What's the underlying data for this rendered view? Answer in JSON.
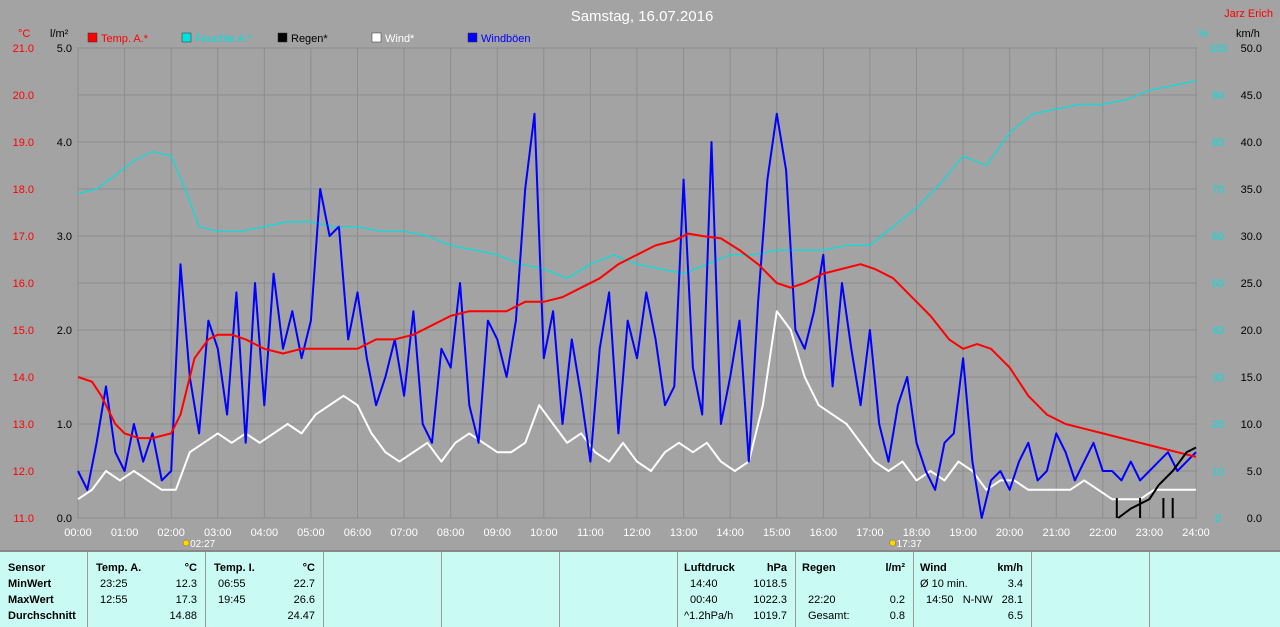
{
  "title": "Samstag, 16.07.2016",
  "author": "Jarz Erich",
  "colors": {
    "background": "#a3a3a3",
    "temp": "#ff0000",
    "pressure": "#00e0e0",
    "rain": "#000000",
    "wind": "#ffffff",
    "gust": "#0000ff",
    "stats_bg": "#c9fbf4"
  },
  "axis_units": {
    "temp": "°C",
    "rain": "l/m²",
    "pressure_right": "%",
    "wind_right": "km/h"
  },
  "sun": {
    "sunrise": "02:27",
    "sunset": "17:37"
  },
  "chart_data": {
    "type": "line",
    "title": "Samstag, 16.07.2016",
    "x_ticks": [
      "00:00",
      "01:00",
      "02:00",
      "03:00",
      "04:00",
      "05:00",
      "06:00",
      "07:00",
      "08:00",
      "09:00",
      "10:00",
      "11:00",
      "12:00",
      "13:00",
      "14:00",
      "15:00",
      "16:00",
      "17:00",
      "18:00",
      "19:00",
      "20:00",
      "21:00",
      "22:00",
      "23:00",
      "24:00"
    ],
    "axes": {
      "temp": {
        "label": "°C",
        "ticks": [
          "11.0",
          "12.0",
          "13.0",
          "14.0",
          "15.0",
          "16.0",
          "17.0",
          "18.0",
          "19.0",
          "20.0",
          "21.0"
        ],
        "range": [
          11,
          21
        ]
      },
      "rain": {
        "label": "l/m²",
        "ticks": [
          "0.0",
          "1.0",
          "2.0",
          "3.0",
          "4.0",
          "5.0"
        ],
        "range": [
          0,
          5
        ]
      },
      "right1": {
        "label": "%",
        "ticks": [
          "0",
          "10",
          "20",
          "30",
          "40",
          "50",
          "60",
          "70",
          "80",
          "90",
          "100"
        ],
        "range": [
          0,
          100
        ]
      },
      "wind": {
        "label": "km/h",
        "ticks": [
          "0.0",
          "5.0",
          "10.0",
          "15.0",
          "20.0",
          "25.0",
          "30.0",
          "35.0",
          "40.0",
          "45.0",
          "50.0"
        ],
        "range": [
          0,
          50
        ]
      }
    },
    "legend": [
      {
        "name": "Temp. A.*",
        "color": "#ff0000"
      },
      {
        "name": "Feuchte A.*",
        "color": "#00e0e0"
      },
      {
        "name": "Regen*",
        "color": "#000000"
      },
      {
        "name": "Wind*",
        "color": "#ffffff"
      },
      {
        "name": "Windböen",
        "color": "#0000ff"
      }
    ],
    "series": [
      {
        "name": "Temp. A.*",
        "axis": "temp",
        "color": "#ff0000",
        "x": [
          0,
          0.3,
          0.5,
          0.8,
          1,
          1.3,
          1.6,
          2,
          2.2,
          2.5,
          2.8,
          3,
          3.3,
          3.6,
          4,
          4.4,
          4.8,
          5.2,
          5.6,
          6,
          6.4,
          6.8,
          7.2,
          7.6,
          8,
          8.4,
          8.8,
          9.2,
          9.6,
          10,
          10.4,
          10.8,
          11.2,
          11.6,
          12,
          12.4,
          12.8,
          13.1,
          13.4,
          13.8,
          14.2,
          14.6,
          15,
          15.3,
          15.6,
          16,
          16.4,
          16.8,
          17.1,
          17.5,
          17.9,
          18.3,
          18.7,
          19,
          19.3,
          19.6,
          20,
          20.4,
          20.8,
          21.2,
          21.6,
          22,
          22.4,
          22.8,
          23.2,
          23.6,
          24
        ],
        "y": [
          14.0,
          13.9,
          13.6,
          13.0,
          12.8,
          12.7,
          12.7,
          12.8,
          13.2,
          14.4,
          14.8,
          14.9,
          14.9,
          14.8,
          14.6,
          14.5,
          14.6,
          14.6,
          14.6,
          14.6,
          14.8,
          14.8,
          14.9,
          15.1,
          15.3,
          15.4,
          15.4,
          15.4,
          15.6,
          15.6,
          15.7,
          15.9,
          16.1,
          16.4,
          16.6,
          16.8,
          16.9,
          17.05,
          17.0,
          16.95,
          16.7,
          16.4,
          16.0,
          15.9,
          16.0,
          16.2,
          16.3,
          16.4,
          16.3,
          16.1,
          15.7,
          15.3,
          14.8,
          14.6,
          14.7,
          14.6,
          14.2,
          13.6,
          13.2,
          13.0,
          12.9,
          12.8,
          12.7,
          12.6,
          12.5,
          12.4,
          12.3
        ]
      },
      {
        "name": "Feuchte A.*",
        "axis": "right1",
        "color": "#00e0e0",
        "x": [
          0,
          0.4,
          0.8,
          1.2,
          1.6,
          2,
          2.3,
          2.6,
          3,
          3.5,
          4,
          4.5,
          5,
          5.5,
          6,
          6.5,
          7,
          7.5,
          8,
          8.5,
          9,
          9.5,
          10,
          10.5,
          11,
          11.5,
          12,
          12.5,
          13,
          13.5,
          14,
          14.5,
          15,
          15.5,
          16,
          16.5,
          17,
          17.5,
          18,
          18.5,
          19,
          19.5,
          20,
          20.5,
          21,
          21.5,
          22,
          22.5,
          23,
          23.5,
          24
        ],
        "y": [
          69,
          70,
          73,
          76,
          78,
          77,
          70,
          62,
          61,
          61,
          62,
          63,
          63,
          62,
          62,
          61,
          61,
          60,
          58,
          57,
          56,
          54,
          53,
          51,
          54,
          56,
          54,
          53,
          52,
          54,
          56,
          56,
          57,
          57,
          57,
          58,
          58,
          62,
          66,
          71,
          77,
          75,
          82,
          86,
          87,
          88,
          88,
          89,
          91,
          92,
          93
        ]
      },
      {
        "name": "Wind*",
        "axis": "wind",
        "color": "#ffffff",
        "x": [
          0,
          0.3,
          0.6,
          0.9,
          1.2,
          1.5,
          1.8,
          2.1,
          2.4,
          2.7,
          3,
          3.3,
          3.6,
          3.9,
          4.2,
          4.5,
          4.8,
          5.1,
          5.4,
          5.7,
          6,
          6.3,
          6.6,
          6.9,
          7.2,
          7.5,
          7.8,
          8.1,
          8.4,
          8.7,
          9,
          9.3,
          9.6,
          9.9,
          10.2,
          10.5,
          10.8,
          11.1,
          11.4,
          11.7,
          12,
          12.3,
          12.6,
          12.9,
          13.2,
          13.5,
          13.8,
          14.1,
          14.4,
          14.7,
          15,
          15.3,
          15.6,
          15.9,
          16.2,
          16.5,
          16.8,
          17.1,
          17.4,
          17.7,
          18,
          18.3,
          18.6,
          18.9,
          19.2,
          19.5,
          19.8,
          20.1,
          20.4,
          20.7,
          21,
          21.3,
          21.6,
          21.9,
          22.2,
          22.5,
          22.8,
          23.1,
          23.4,
          23.7,
          24
        ],
        "y": [
          2,
          3,
          5,
          4,
          5,
          4,
          3,
          3,
          7,
          8,
          9,
          8,
          9,
          8,
          9,
          10,
          9,
          11,
          12,
          13,
          12,
          9,
          7,
          6,
          7,
          8,
          6,
          8,
          9,
          8,
          7,
          7,
          8,
          12,
          10,
          8,
          9,
          7,
          6,
          8,
          6,
          5,
          7,
          8,
          7,
          8,
          6,
          5,
          6,
          12,
          22,
          20,
          15,
          12,
          11,
          10,
          8,
          6,
          5,
          6,
          4,
          5,
          4,
          6,
          5,
          3,
          4,
          4,
          3,
          3,
          3,
          3,
          4,
          3,
          2,
          2,
          2,
          3,
          3,
          3,
          3
        ]
      },
      {
        "name": "Windböen",
        "axis": "wind",
        "color": "#0000ff",
        "x": [
          0,
          0.2,
          0.4,
          0.6,
          0.8,
          1,
          1.2,
          1.4,
          1.6,
          1.8,
          2,
          2.2,
          2.4,
          2.6,
          2.8,
          3,
          3.2,
          3.4,
          3.6,
          3.8,
          4,
          4.2,
          4.4,
          4.6,
          4.8,
          5,
          5.2,
          5.4,
          5.6,
          5.8,
          6,
          6.2,
          6.4,
          6.6,
          6.8,
          7,
          7.2,
          7.4,
          7.6,
          7.8,
          8,
          8.2,
          8.4,
          8.6,
          8.8,
          9,
          9.2,
          9.4,
          9.6,
          9.8,
          10,
          10.2,
          10.4,
          10.6,
          10.8,
          11,
          11.2,
          11.4,
          11.6,
          11.8,
          12,
          12.2,
          12.4,
          12.6,
          12.8,
          13,
          13.2,
          13.4,
          13.6,
          13.8,
          14,
          14.2,
          14.4,
          14.6,
          14.8,
          15,
          15.2,
          15.4,
          15.6,
          15.8,
          16,
          16.2,
          16.4,
          16.6,
          16.8,
          17,
          17.2,
          17.4,
          17.6,
          17.8,
          18,
          18.2,
          18.4,
          18.6,
          18.8,
          19,
          19.2,
          19.4,
          19.6,
          19.8,
          20,
          20.2,
          20.4,
          20.6,
          20.8,
          21,
          21.2,
          21.4,
          21.6,
          21.8,
          22,
          22.2,
          22.4,
          22.6,
          22.8,
          23,
          23.2,
          23.4,
          23.6,
          23.8,
          24
        ],
        "y": [
          5,
          3,
          8,
          14,
          7,
          5,
          10,
          6,
          9,
          4,
          5,
          27,
          15,
          9,
          21,
          18,
          11,
          24,
          8,
          25,
          12,
          26,
          18,
          22,
          17,
          21,
          35,
          30,
          31,
          19,
          24,
          17,
          12,
          15,
          19,
          13,
          22,
          10,
          8,
          18,
          16,
          25,
          12,
          8,
          21,
          19,
          15,
          21,
          35,
          43,
          17,
          22,
          10,
          19,
          13,
          6,
          18,
          24,
          9,
          21,
          17,
          24,
          19,
          12,
          14,
          36,
          16,
          11,
          40,
          10,
          15,
          21,
          6,
          23,
          36,
          43,
          37,
          20,
          18,
          22,
          28,
          14,
          25,
          18,
          12,
          20,
          10,
          6,
          12,
          15,
          8,
          5,
          3,
          8,
          9,
          17,
          6,
          0,
          4,
          5,
          3,
          6,
          8,
          4,
          5,
          9,
          7,
          4,
          6,
          8,
          5,
          5,
          4,
          6,
          4,
          5,
          6,
          7,
          5,
          6,
          7
        ]
      },
      {
        "name": "Regen*",
        "axis": "rain",
        "color": "#000000",
        "x": [
          22.33,
          22.6,
          22.8,
          23.0,
          23.2,
          23.5,
          23.8,
          24
        ],
        "y": [
          0,
          0.1,
          0.15,
          0.2,
          0.35,
          0.5,
          0.7,
          0.75
        ]
      }
    ],
    "rain_bars": [
      22.3,
      22.8,
      23.3,
      23.5
    ]
  },
  "stats": {
    "sensor": {
      "header": "Sensor",
      "rows": [
        "MinWert",
        "MaxWert",
        "Durchschnitt"
      ]
    },
    "temp_a": {
      "header": "Temp. A.",
      "unit": "°C",
      "rows": [
        {
          "time": "23:25",
          "value": "12.3"
        },
        {
          "time": "12:55",
          "value": "17.3"
        },
        {
          "time": "",
          "value": "14.88"
        }
      ]
    },
    "temp_i": {
      "header": "Temp. I.",
      "unit": "°C",
      "rows": [
        {
          "time": "06:55",
          "value": "22.7"
        },
        {
          "time": "19:45",
          "value": "26.6"
        },
        {
          "time": "",
          "value": "24.47"
        }
      ]
    },
    "luftdruck": {
      "header": "Luftdruck",
      "unit": "hPa",
      "rows": [
        {
          "time": "14:40",
          "value": "1018.5"
        },
        {
          "time": "00:40",
          "value": "1022.3"
        },
        {
          "time": "^1.2hPa/h",
          "value": "1019.7"
        }
      ]
    },
    "regen": {
      "header": "Regen",
      "unit": "l/m²",
      "rows": [
        {
          "time": "",
          "value": ""
        },
        {
          "time": "22:20",
          "value": "0.2"
        },
        {
          "time": "Gesamt:",
          "value": "0.8"
        }
      ]
    },
    "wind": {
      "header": "Wind",
      "unit": "km/h",
      "rows": [
        {
          "time": "Ø 10 min.",
          "value": "3.4"
        },
        {
          "time": "14:50   N-NW",
          "value": "28.1"
        },
        {
          "time": "",
          "value": "6.5"
        }
      ]
    }
  }
}
